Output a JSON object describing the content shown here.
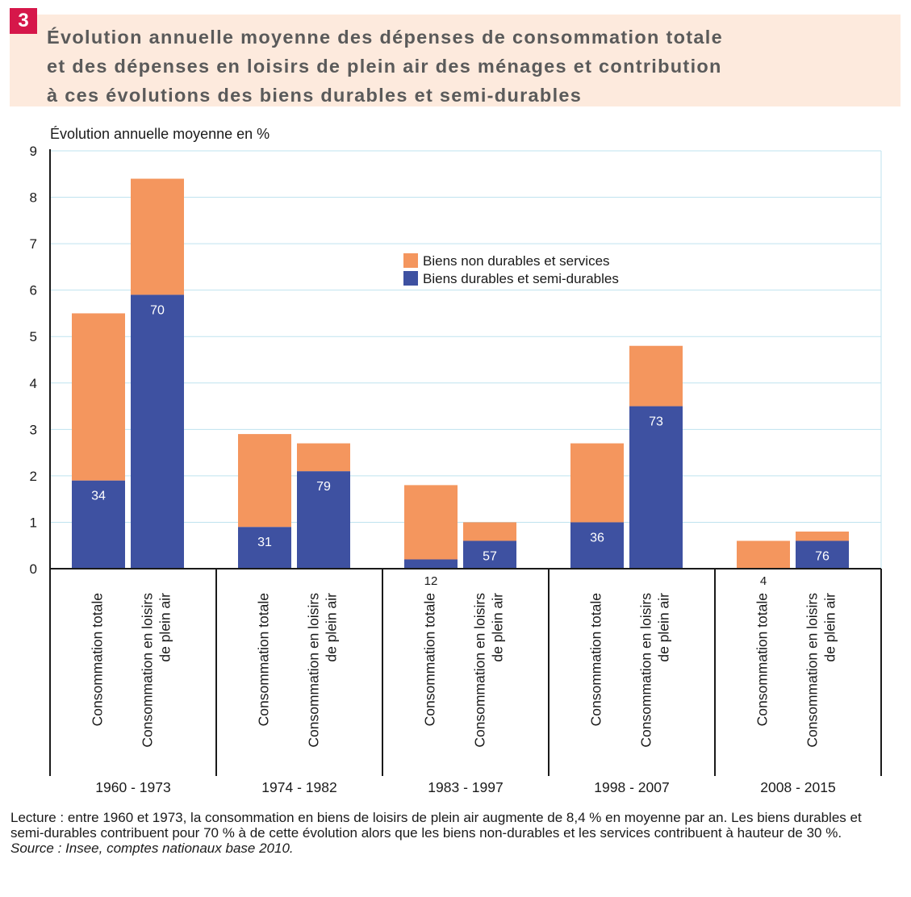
{
  "figure": {
    "number": "3",
    "title_lines": [
      "Évolution annuelle moyenne des dépenses de consommation totale",
      "et des dépenses en loisirs de plein air des ménages et contribution",
      "à ces évolutions des biens durables et semi-durables"
    ]
  },
  "chart_data": {
    "type": "bar",
    "stacked": true,
    "ylabel": "Évolution annuelle moyenne en %",
    "ylim": [
      0,
      9
    ],
    "yticks": [
      0,
      1,
      2,
      3,
      4,
      5,
      6,
      7,
      8,
      9
    ],
    "grid": true,
    "legend_position": "top-center",
    "groups": [
      "1960 - 1973",
      "1974 - 1982",
      "1983 - 1997",
      "1998 - 2007",
      "2008 - 2015"
    ],
    "bar_names": [
      "Consommation totale",
      "Consommation en loisirs de plein air"
    ],
    "series": [
      {
        "name": "Biens non durables et services",
        "color": "#f4965e",
        "values": [
          [
            3.6,
            2.5
          ],
          [
            2.0,
            0.6
          ],
          [
            1.6,
            0.4
          ],
          [
            1.7,
            1.3
          ],
          [
            0.6,
            0.2
          ]
        ]
      },
      {
        "name": "Biens durables et semi-durables",
        "color": "#3e51a1",
        "values": [
          [
            1.9,
            5.9
          ],
          [
            0.9,
            2.1
          ],
          [
            0.2,
            0.6
          ],
          [
            1.0,
            3.5
          ],
          [
            0.0,
            0.6
          ]
        ]
      }
    ],
    "totals": [
      [
        5.5,
        8.4
      ],
      [
        2.9,
        2.7
      ],
      [
        1.8,
        1.0
      ],
      [
        2.7,
        4.8
      ],
      [
        0.6,
        0.8
      ]
    ],
    "contribution_labels": [
      [
        "34",
        "70"
      ],
      [
        "31",
        "79"
      ],
      [
        "12",
        "57"
      ],
      [
        "36",
        "73"
      ],
      [
        "4",
        "76"
      ]
    ]
  },
  "notes": {
    "reading": "Lecture : entre 1960 et 1973, la consommation en biens de loisirs de plein air augmente de 8,4 % en moyenne par an. Les biens durables et semi-durables contribuent pour 70 % à de cette évolution alors que les biens non-durables et les services contribuent à hauteur de 30 %.",
    "source": "Source : Insee, comptes nationaux base 2010."
  }
}
